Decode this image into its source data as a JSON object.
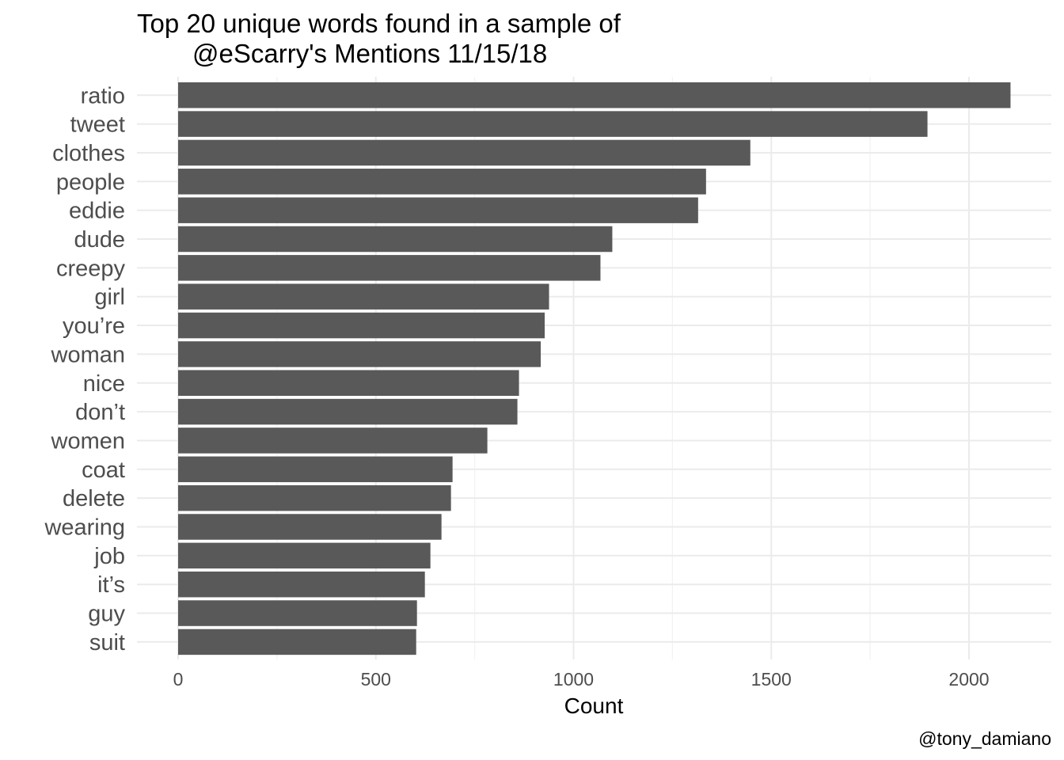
{
  "chart_data": {
    "type": "bar",
    "orientation": "horizontal",
    "title": [
      "Top 20 unique words found in a sample of",
      "@eScarry's Mentions 11/15/18"
    ],
    "xlabel": "Count",
    "ylabel": "",
    "caption": "@tony_damiano",
    "categories": [
      "ratio",
      "tweet",
      "clothes",
      "people",
      "eddie",
      "dude",
      "creepy",
      "girl",
      "you’re",
      "woman",
      "nice",
      "don’t",
      "women",
      "coat",
      "delete",
      "wearing",
      "job",
      "it’s",
      "guy",
      "suit"
    ],
    "values": [
      2105,
      1895,
      1447,
      1335,
      1315,
      1098,
      1068,
      938,
      927,
      917,
      862,
      858,
      782,
      694,
      690,
      666,
      638,
      624,
      604,
      602
    ],
    "xlim": [
      -125,
      2180
    ],
    "x_ticks": [
      "0",
      "500",
      "1000",
      "1500",
      "2000"
    ],
    "x_tick_values": [
      0,
      500,
      1000,
      1500,
      2000
    ],
    "grid": true,
    "colors": {
      "bar": "#595959",
      "grid_major": "#ebebeb",
      "grid_minor": "#f2f2f2"
    }
  }
}
